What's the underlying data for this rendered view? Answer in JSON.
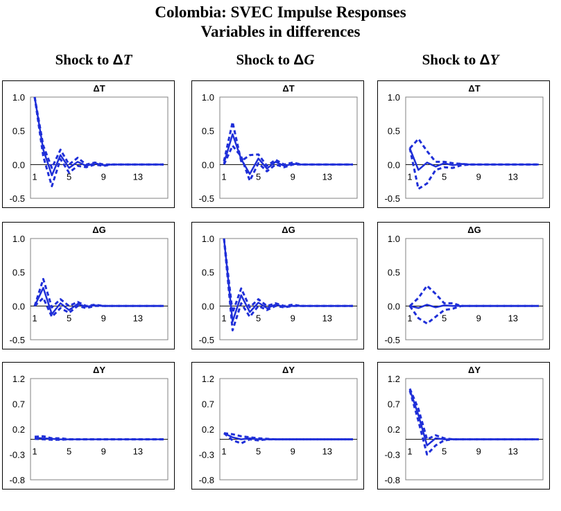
{
  "figure": {
    "title_line1": "Colombia: SVEC Impulse Responses",
    "title_line2": "Variables in differences"
  },
  "columns": [
    {
      "prefix": "Shock to",
      "delta": "Δ",
      "var": "T"
    },
    {
      "prefix": "Shock to",
      "delta": "Δ",
      "var": "G"
    },
    {
      "prefix": "Shock to",
      "delta": "Δ",
      "var": "Y"
    }
  ],
  "colors": {
    "line": "#1f2fd8",
    "frame": "#000000",
    "plotBorder": "#808080"
  },
  "chart_data": [
    {
      "type": "line",
      "title": "ΔT",
      "shock": "ΔT",
      "ylim": [
        -0.5,
        1.0
      ],
      "yticks": [
        "1.0",
        "0.5",
        "0.0",
        "-0.5"
      ],
      "xticks": [
        "1",
        "5",
        "9",
        "13"
      ],
      "x": [
        1,
        2,
        3,
        4,
        5,
        6,
        7,
        8,
        9,
        10,
        11,
        12,
        13,
        14,
        15,
        16
      ],
      "series": [
        {
          "name": "response",
          "values": [
            1.0,
            0.22,
            -0.16,
            0.14,
            -0.05,
            0.04,
            -0.02,
            0.02,
            -0.01,
            0.0,
            0.0,
            0.0,
            0.0,
            0.0,
            0.0,
            0.0
          ]
        },
        {
          "name": "upper",
          "values": [
            1.0,
            0.28,
            -0.05,
            0.22,
            0.0,
            0.1,
            0.0,
            0.03,
            0.0,
            0.0,
            0.0,
            0.0,
            0.0,
            0.0,
            0.0,
            0.0
          ]
        },
        {
          "name": "lower",
          "values": [
            1.0,
            0.12,
            -0.32,
            0.08,
            -0.12,
            -0.02,
            -0.04,
            0.0,
            -0.02,
            0.0,
            0.0,
            0.0,
            0.0,
            0.0,
            0.0,
            0.0
          ]
        }
      ]
    },
    {
      "type": "line",
      "title": "ΔT",
      "shock": "ΔG",
      "ylim": [
        -0.5,
        1.0
      ],
      "yticks": [
        "1.0",
        "0.5",
        "0.0",
        "-0.5"
      ],
      "xticks": [
        "1",
        "5",
        "9",
        "13"
      ],
      "x": [
        1,
        2,
        3,
        4,
        5,
        6,
        7,
        8,
        9,
        10,
        11,
        12,
        13,
        14,
        15,
        16
      ],
      "series": [
        {
          "name": "response",
          "values": [
            0.02,
            0.45,
            0.08,
            -0.14,
            0.09,
            -0.06,
            0.04,
            -0.02,
            0.01,
            0.0,
            0.0,
            0.0,
            0.0,
            0.0,
            0.0,
            0.0
          ]
        },
        {
          "name": "upper",
          "values": [
            0.05,
            0.63,
            0.05,
            0.14,
            0.15,
            -0.02,
            0.07,
            0.0,
            0.03,
            0.0,
            0.0,
            0.0,
            0.0,
            0.0,
            0.0,
            0.0
          ]
        },
        {
          "name": "lower",
          "values": [
            0.0,
            0.28,
            0.12,
            -0.24,
            0.02,
            -0.1,
            0.0,
            -0.04,
            0.0,
            0.0,
            0.0,
            0.0,
            0.0,
            0.0,
            0.0,
            0.0
          ]
        }
      ]
    },
    {
      "type": "line",
      "title": "ΔT",
      "shock": "ΔY",
      "ylim": [
        -0.5,
        1.0
      ],
      "yticks": [
        "1.0",
        "0.5",
        "0.0",
        "-0.5"
      ],
      "xticks": [
        "1",
        "5",
        "9",
        "13"
      ],
      "x": [
        1,
        2,
        3,
        4,
        5,
        6,
        7,
        8,
        9,
        10,
        11,
        12,
        13,
        14,
        15,
        16
      ],
      "series": [
        {
          "name": "response",
          "values": [
            0.24,
            -0.08,
            0.03,
            -0.03,
            0.02,
            -0.01,
            0.01,
            0.0,
            0.0,
            0.0,
            0.0,
            0.0,
            0.0,
            0.0,
            0.0,
            0.0
          ]
        },
        {
          "name": "upper",
          "values": [
            0.24,
            0.38,
            0.2,
            0.04,
            0.04,
            0.02,
            0.01,
            0.0,
            0.0,
            0.0,
            0.0,
            0.0,
            0.0,
            0.0,
            0.0,
            0.0
          ]
        },
        {
          "name": "lower",
          "values": [
            0.24,
            -0.36,
            -0.28,
            -0.08,
            -0.04,
            -0.05,
            -0.01,
            0.0,
            0.0,
            0.0,
            0.0,
            0.0,
            0.0,
            0.0,
            0.0,
            0.0
          ]
        }
      ]
    },
    {
      "type": "line",
      "title": "ΔG",
      "shock": "ΔT",
      "ylim": [
        -0.5,
        1.0
      ],
      "yticks": [
        "1.0",
        "0.5",
        "0.0",
        "-0.5"
      ],
      "xticks": [
        "1",
        "5",
        "9",
        "13"
      ],
      "x": [
        1,
        2,
        3,
        4,
        5,
        6,
        7,
        8,
        9,
        10,
        11,
        12,
        13,
        14,
        15,
        16
      ],
      "series": [
        {
          "name": "response",
          "values": [
            0.0,
            0.27,
            -0.12,
            0.04,
            -0.06,
            0.03,
            -0.01,
            0.01,
            0.0,
            0.0,
            0.0,
            0.0,
            0.0,
            0.0,
            0.0,
            0.0
          ]
        },
        {
          "name": "upper",
          "values": [
            0.0,
            0.4,
            -0.02,
            0.1,
            0.0,
            0.06,
            0.0,
            0.02,
            0.0,
            0.0,
            0.0,
            0.0,
            0.0,
            0.0,
            0.0,
            0.0
          ]
        },
        {
          "name": "lower",
          "values": [
            0.0,
            0.12,
            -0.16,
            -0.03,
            -0.1,
            0.0,
            -0.03,
            0.0,
            0.0,
            0.0,
            0.0,
            0.0,
            0.0,
            0.0,
            0.0,
            0.0
          ]
        }
      ]
    },
    {
      "type": "line",
      "title": "ΔG",
      "shock": "ΔG",
      "ylim": [
        -0.5,
        1.0
      ],
      "yticks": [
        "1.0",
        "0.5",
        "0.0",
        "-0.5"
      ],
      "xticks": [
        "1",
        "5",
        "9",
        "13"
      ],
      "x": [
        1,
        2,
        3,
        4,
        5,
        6,
        7,
        8,
        9,
        10,
        11,
        12,
        13,
        14,
        15,
        16
      ],
      "series": [
        {
          "name": "response",
          "values": [
            1.0,
            -0.23,
            0.16,
            -0.09,
            0.05,
            -0.03,
            0.02,
            -0.01,
            0.0,
            0.0,
            0.0,
            0.0,
            0.0,
            0.0,
            0.0,
            0.0
          ]
        },
        {
          "name": "upper",
          "values": [
            1.0,
            -0.1,
            0.26,
            -0.02,
            0.1,
            0.0,
            0.04,
            0.0,
            0.02,
            0.0,
            0.0,
            0.0,
            0.0,
            0.0,
            0.0,
            0.0
          ]
        },
        {
          "name": "lower",
          "values": [
            1.0,
            -0.36,
            0.04,
            -0.16,
            0.0,
            -0.06,
            0.0,
            -0.02,
            0.0,
            0.0,
            0.0,
            0.0,
            0.0,
            0.0,
            0.0,
            0.0
          ]
        }
      ]
    },
    {
      "type": "line",
      "title": "ΔG",
      "shock": "ΔY",
      "ylim": [
        -0.5,
        1.0
      ],
      "yticks": [
        "1.0",
        "0.5",
        "0.0",
        "-0.5"
      ],
      "xticks": [
        "1",
        "5",
        "9",
        "13"
      ],
      "x": [
        1,
        2,
        3,
        4,
        5,
        6,
        7,
        8,
        9,
        10,
        11,
        12,
        13,
        14,
        15,
        16
      ],
      "series": [
        {
          "name": "response",
          "values": [
            0.0,
            -0.03,
            0.02,
            -0.02,
            0.01,
            0.0,
            0.0,
            0.0,
            0.0,
            0.0,
            0.0,
            0.0,
            0.0,
            0.0,
            0.0,
            0.0
          ]
        },
        {
          "name": "upper",
          "values": [
            0.0,
            0.12,
            0.3,
            0.18,
            0.04,
            0.04,
            0.0,
            0.0,
            0.0,
            0.0,
            0.0,
            0.0,
            0.0,
            0.0,
            0.0,
            0.0
          ]
        },
        {
          "name": "lower",
          "values": [
            0.0,
            -0.18,
            -0.26,
            -0.16,
            -0.06,
            -0.04,
            0.0,
            0.0,
            0.0,
            0.0,
            0.0,
            0.0,
            0.0,
            0.0,
            0.0,
            0.0
          ]
        }
      ]
    },
    {
      "type": "line",
      "title": "ΔY",
      "shock": "ΔT",
      "ylim": [
        -0.8,
        1.2
      ],
      "yticks": [
        "1.2",
        "0.7",
        "0.2",
        "-0.3",
        "-0.8"
      ],
      "xticks": [
        "1",
        "5",
        "9",
        "13"
      ],
      "x": [
        1,
        2,
        3,
        4,
        5,
        6,
        7,
        8,
        9,
        10,
        11,
        12,
        13,
        14,
        15,
        16
      ],
      "series": [
        {
          "name": "response",
          "values": [
            0.03,
            0.02,
            0.01,
            0.0,
            0.0,
            0.0,
            0.0,
            0.0,
            0.0,
            0.0,
            0.0,
            0.0,
            0.0,
            0.0,
            0.0,
            0.0
          ]
        },
        {
          "name": "upper",
          "values": [
            0.05,
            0.06,
            0.02,
            0.02,
            0.0,
            0.0,
            0.0,
            0.0,
            0.0,
            0.0,
            0.0,
            0.0,
            0.0,
            0.0,
            0.0,
            0.0
          ]
        },
        {
          "name": "lower",
          "values": [
            0.01,
            0.0,
            -0.01,
            -0.01,
            0.0,
            0.0,
            0.0,
            0.0,
            0.0,
            0.0,
            0.0,
            0.0,
            0.0,
            0.0,
            0.0,
            0.0
          ]
        }
      ]
    },
    {
      "type": "line",
      "title": "ΔY",
      "shock": "ΔG",
      "ylim": [
        -0.8,
        1.2
      ],
      "yticks": [
        "1.2",
        "0.7",
        "0.2",
        "-0.3",
        "-0.8"
      ],
      "xticks": [
        "1",
        "5",
        "9",
        "13"
      ],
      "x": [
        1,
        2,
        3,
        4,
        5,
        6,
        7,
        8,
        9,
        10,
        11,
        12,
        13,
        14,
        15,
        16
      ],
      "series": [
        {
          "name": "response",
          "values": [
            0.12,
            0.04,
            0.0,
            0.02,
            0.0,
            0.0,
            0.0,
            0.0,
            0.0,
            0.0,
            0.0,
            0.0,
            0.0,
            0.0,
            0.0,
            0.0
          ]
        },
        {
          "name": "upper",
          "values": [
            0.12,
            0.1,
            0.06,
            0.04,
            0.02,
            0.01,
            0.0,
            0.0,
            0.0,
            0.0,
            0.0,
            0.0,
            0.0,
            0.0,
            0.0,
            0.0
          ]
        },
        {
          "name": "lower",
          "values": [
            0.12,
            -0.02,
            -0.08,
            0.0,
            -0.02,
            0.0,
            0.0,
            0.0,
            0.0,
            0.0,
            0.0,
            0.0,
            0.0,
            0.0,
            0.0,
            0.0
          ]
        }
      ]
    },
    {
      "type": "line",
      "title": "ΔY",
      "shock": "ΔY",
      "ylim": [
        -0.8,
        1.2
      ],
      "yticks": [
        "1.2",
        "0.7",
        "0.2",
        "-0.3",
        "-0.8"
      ],
      "xticks": [
        "1",
        "5",
        "9",
        "13"
      ],
      "x": [
        1,
        2,
        3,
        4,
        5,
        6,
        7,
        8,
        9,
        10,
        11,
        12,
        13,
        14,
        15,
        16
      ],
      "series": [
        {
          "name": "response",
          "values": [
            0.98,
            0.48,
            -0.12,
            0.02,
            0.0,
            0.0,
            0.0,
            0.0,
            0.0,
            0.0,
            0.0,
            0.0,
            0.0,
            0.0,
            0.0,
            0.0
          ]
        },
        {
          "name": "upper",
          "values": [
            1.0,
            0.6,
            0.0,
            0.08,
            0.02,
            0.0,
            0.0,
            0.0,
            0.0,
            0.0,
            0.0,
            0.0,
            0.0,
            0.0,
            0.0,
            0.0
          ]
        },
        {
          "name": "lower",
          "values": [
            0.96,
            0.36,
            -0.3,
            -0.12,
            -0.02,
            0.0,
            0.0,
            0.0,
            0.0,
            0.0,
            0.0,
            0.0,
            0.0,
            0.0,
            0.0,
            0.0
          ]
        }
      ]
    }
  ]
}
